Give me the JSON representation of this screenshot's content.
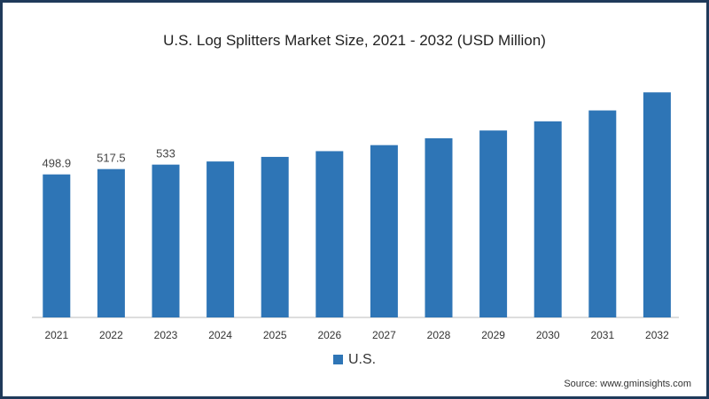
{
  "chart_data": {
    "type": "bar",
    "title": "U.S. Log Splitters Market Size, 2021 - 2032 (USD Million)",
    "categories": [
      "2021",
      "2022",
      "2023",
      "2024",
      "2025",
      "2026",
      "2027",
      "2028",
      "2029",
      "2030",
      "2031",
      "2032"
    ],
    "series": [
      {
        "name": "U.S.",
        "color": "#2e75b6",
        "values": [
          498.9,
          517.5,
          533,
          544,
          560,
          580,
          601,
          625,
          652,
          684,
          722,
          785
        ]
      }
    ],
    "data_labels": [
      "498.9",
      "517.5",
      "533",
      null,
      null,
      null,
      null,
      null,
      null,
      null,
      null,
      null
    ],
    "xlabel": "",
    "ylabel": "",
    "ylim": [
      0,
      900
    ],
    "grid": false,
    "legend": "bottom-center"
  },
  "source": "Source: www.gminsights.com"
}
